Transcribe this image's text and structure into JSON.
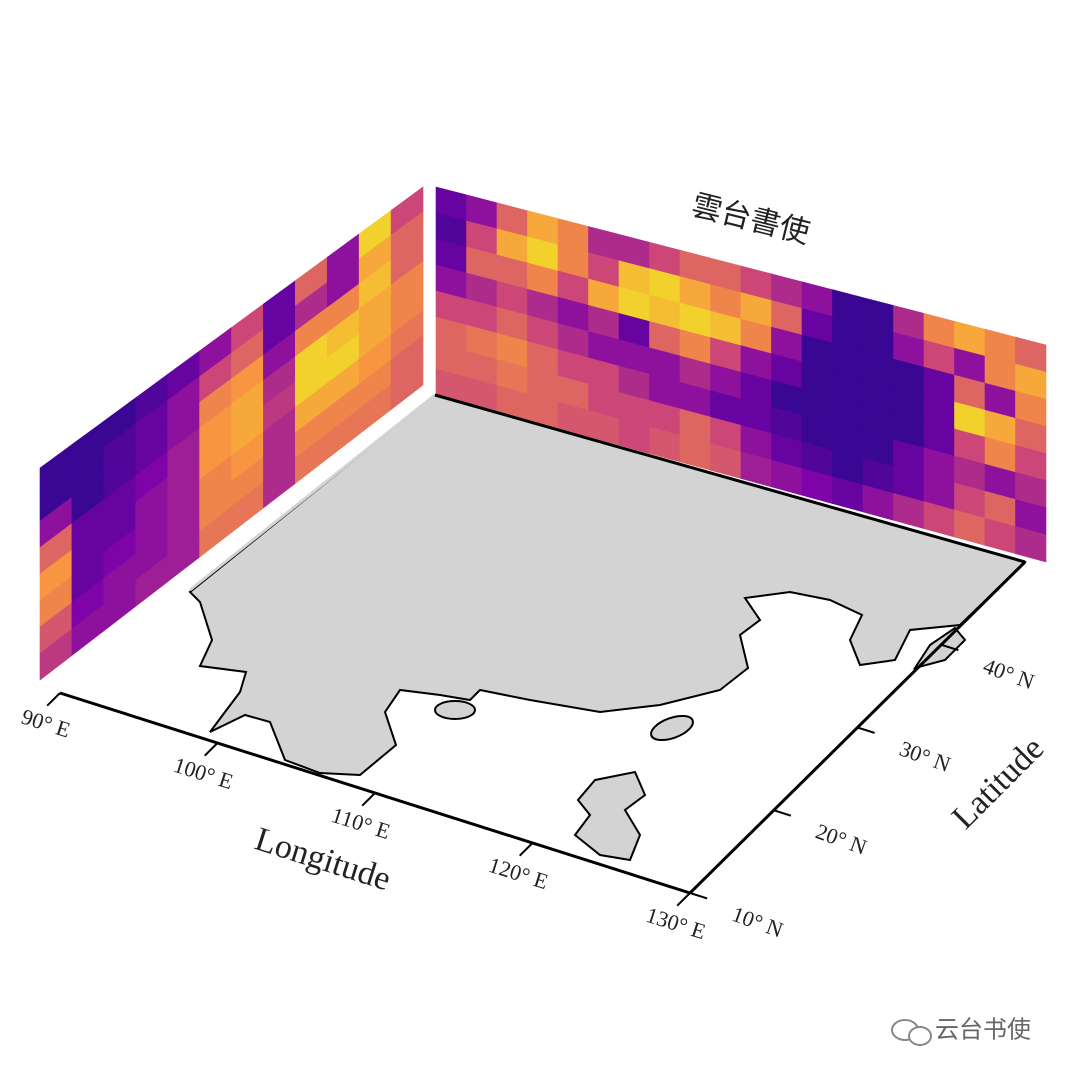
{
  "chart_data": {
    "type": "map3d",
    "title": "雲台書使",
    "xlabel": "Longitude",
    "ylabel": "Latitude",
    "xlim": [
      90,
      130
    ],
    "ylim": [
      10,
      50
    ],
    "xticks": [
      {
        "value": 90,
        "label": "90° E"
      },
      {
        "value": 100,
        "label": "100° E"
      },
      {
        "value": 110,
        "label": "110° E"
      },
      {
        "value": 120,
        "label": "120° E"
      },
      {
        "value": 130,
        "label": "130° E"
      }
    ],
    "yticks": [
      {
        "value": 10,
        "label": "10° N"
      },
      {
        "value": 20,
        "label": "20° N"
      },
      {
        "value": 30,
        "label": "30° N"
      },
      {
        "value": 40,
        "label": "40° N"
      }
    ],
    "colormap": "plasma",
    "left_wall": {
      "values": [
        [
          0.1,
          0.1,
          0.1,
          0.15,
          0.2,
          0.3,
          0.5,
          0.2,
          0.6,
          0.3,
          0.9,
          0.5
        ],
        [
          0.1,
          0.1,
          0.15,
          0.2,
          0.3,
          0.5,
          0.6,
          0.2,
          0.4,
          0.3,
          0.8,
          0.6
        ],
        [
          0.3,
          0.1,
          0.15,
          0.2,
          0.3,
          0.7,
          0.75,
          0.3,
          0.7,
          0.7,
          0.85,
          0.6
        ],
        [
          0.6,
          0.2,
          0.2,
          0.25,
          0.35,
          0.75,
          0.8,
          0.4,
          0.9,
          0.85,
          0.8,
          0.7
        ],
        [
          0.75,
          0.2,
          0.2,
          0.3,
          0.35,
          0.75,
          0.8,
          0.45,
          0.9,
          0.9,
          0.8,
          0.7
        ],
        [
          0.7,
          0.2,
          0.25,
          0.3,
          0.35,
          0.7,
          0.75,
          0.4,
          0.8,
          0.8,
          0.75,
          0.65
        ],
        [
          0.55,
          0.25,
          0.3,
          0.3,
          0.35,
          0.7,
          0.7,
          0.4,
          0.7,
          0.7,
          0.7,
          0.6
        ],
        [
          0.45,
          0.3,
          0.3,
          0.35,
          0.35,
          0.65,
          0.65,
          0.4,
          0.65,
          0.65,
          0.65,
          0.6
        ]
      ]
    },
    "back_wall": {
      "values": [
        [
          0.2,
          0.3,
          0.6,
          0.8,
          0.7,
          0.4,
          0.4,
          0.5,
          0.6,
          0.6,
          0.5,
          0.4,
          0.3,
          0.1,
          0.1,
          0.4,
          0.7,
          0.8,
          0.7,
          0.6
        ],
        [
          0.15,
          0.5,
          0.8,
          0.9,
          0.7,
          0.5,
          0.85,
          0.9,
          0.8,
          0.7,
          0.8,
          0.6,
          0.2,
          0.1,
          0.1,
          0.3,
          0.5,
          0.3,
          0.7,
          0.8
        ],
        [
          0.2,
          0.6,
          0.6,
          0.7,
          0.5,
          0.8,
          0.9,
          0.85,
          0.9,
          0.85,
          0.7,
          0.3,
          0.1,
          0.1,
          0.1,
          0.1,
          0.2,
          0.6,
          0.3,
          0.7
        ],
        [
          0.3,
          0.4,
          0.5,
          0.4,
          0.3,
          0.4,
          0.2,
          0.6,
          0.7,
          0.5,
          0.3,
          0.2,
          0.1,
          0.1,
          0.1,
          0.1,
          0.2,
          0.9,
          0.8,
          0.6
        ],
        [
          0.5,
          0.5,
          0.6,
          0.5,
          0.4,
          0.3,
          0.3,
          0.3,
          0.4,
          0.3,
          0.2,
          0.1,
          0.1,
          0.1,
          0.1,
          0.1,
          0.2,
          0.5,
          0.7,
          0.5
        ],
        [
          0.6,
          0.65,
          0.7,
          0.6,
          0.5,
          0.5,
          0.4,
          0.3,
          0.3,
          0.2,
          0.2,
          0.15,
          0.1,
          0.1,
          0.1,
          0.2,
          0.3,
          0.4,
          0.3,
          0.4
        ],
        [
          0.6,
          0.6,
          0.65,
          0.6,
          0.6,
          0.5,
          0.5,
          0.5,
          0.6,
          0.5,
          0.3,
          0.2,
          0.15,
          0.1,
          0.15,
          0.2,
          0.3,
          0.5,
          0.6,
          0.3
        ],
        [
          0.55,
          0.55,
          0.6,
          0.6,
          0.55,
          0.55,
          0.5,
          0.55,
          0.6,
          0.55,
          0.35,
          0.3,
          0.25,
          0.2,
          0.3,
          0.4,
          0.5,
          0.6,
          0.5,
          0.4
        ]
      ]
    },
    "watermark": "云台书使"
  }
}
